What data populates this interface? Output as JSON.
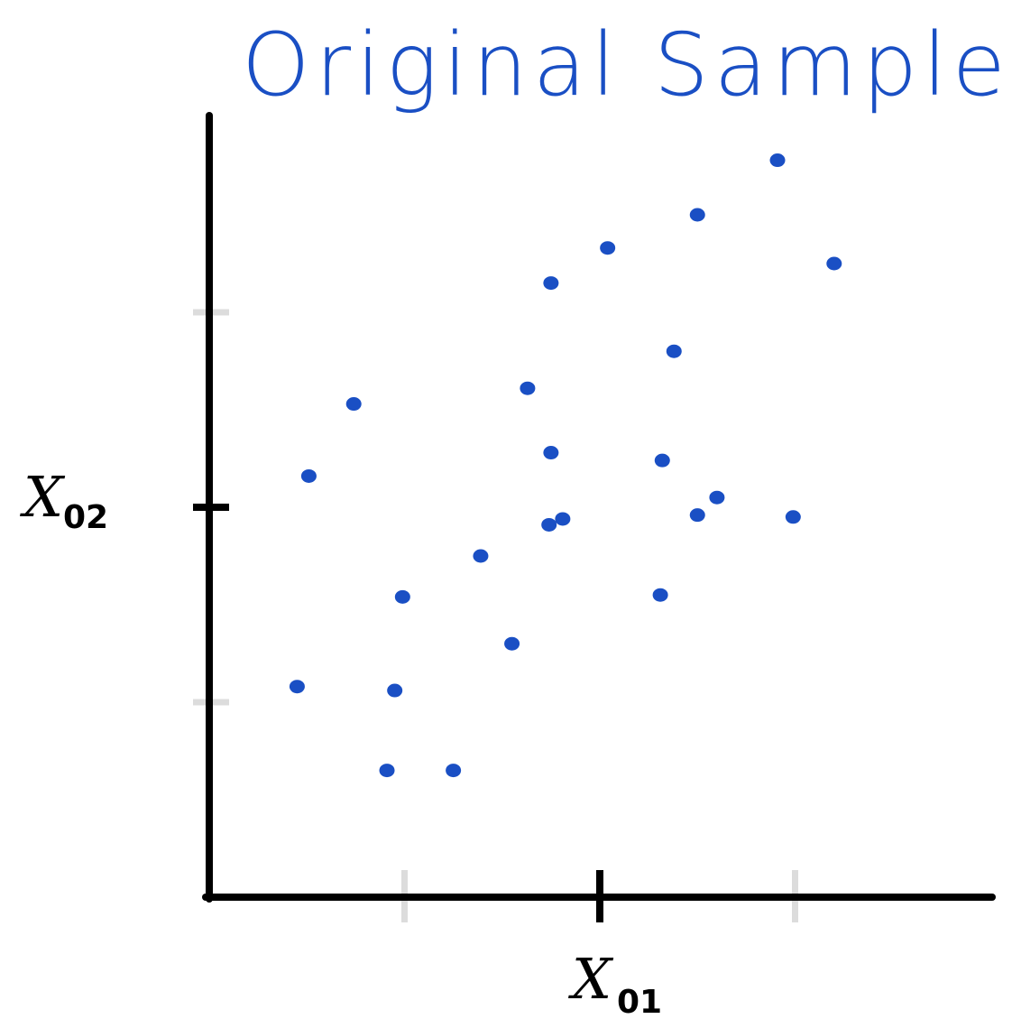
{
  "chart_data": {
    "type": "scatter",
    "title": "Original Sample",
    "xlabel": "",
    "ylabel": "",
    "xlim": [
      0,
      4
    ],
    "ylim": [
      0,
      4
    ],
    "x_ticks": [
      {
        "value": 1,
        "label": "",
        "style": "light"
      },
      {
        "value": 2,
        "label": "X01",
        "style": "dark"
      },
      {
        "value": 3,
        "label": "",
        "style": "light"
      }
    ],
    "y_ticks": [
      {
        "value": 1,
        "label": "",
        "style": "light"
      },
      {
        "value": 2,
        "label": "X02",
        "style": "dark"
      },
      {
        "value": 3,
        "label": "",
        "style": "light"
      }
    ],
    "x_label_main": "X",
    "x_label_sub": "01",
    "y_label_main": "X",
    "y_label_sub": "02",
    "grid": false,
    "series": [
      {
        "color": "#1a4fc4",
        "x": [
          0.45,
          0.51,
          0.74,
          0.91,
          0.95,
          0.99,
          1.25,
          1.39,
          1.55,
          1.63,
          1.74,
          1.75,
          1.75,
          1.81,
          2.04,
          2.31,
          2.32,
          2.38,
          2.5,
          2.5,
          2.6,
          2.91,
          2.99,
          3.2
        ],
        "y": [
          1.08,
          2.16,
          2.53,
          0.65,
          1.06,
          1.54,
          0.65,
          1.75,
          1.3,
          2.61,
          1.91,
          2.28,
          3.15,
          1.94,
          3.33,
          1.55,
          2.24,
          2.8,
          1.96,
          3.5,
          2.05,
          3.78,
          1.95,
          3.25
        ]
      }
    ]
  }
}
